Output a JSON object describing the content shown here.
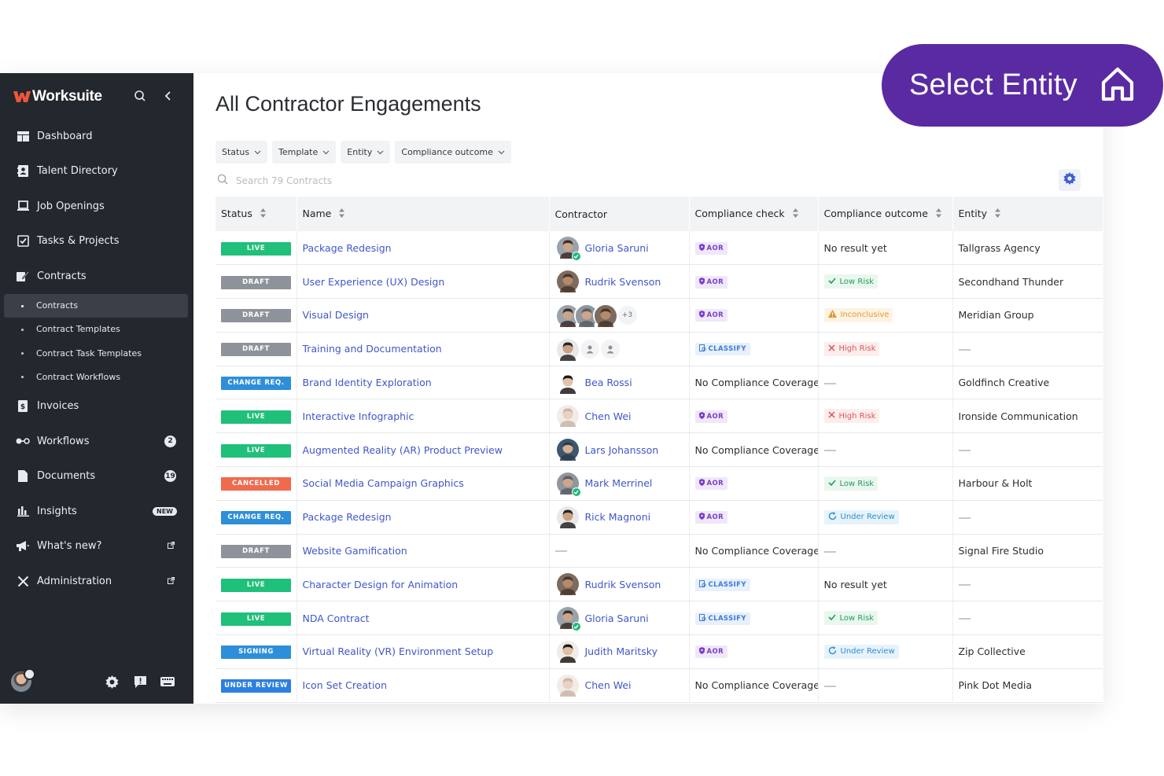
{
  "brand": {
    "name": "Worksuite"
  },
  "overlay": {
    "select_entity": "Select Entity"
  },
  "sidebar": {
    "items": [
      {
        "label": "Dashboard",
        "icon": "dashboard-icon"
      },
      {
        "label": "Talent Directory",
        "icon": "directory-icon"
      },
      {
        "label": "Job Openings",
        "icon": "briefcase-icon"
      },
      {
        "label": "Tasks & Projects",
        "icon": "tasks-icon"
      },
      {
        "label": "Contracts",
        "icon": "contract-icon"
      }
    ],
    "contract_sub": [
      "Contracts",
      "Contract Templates",
      "Contract Task Templates",
      "Contract Workflows"
    ],
    "items2": [
      {
        "label": "Invoices",
        "icon": "invoice-icon"
      },
      {
        "label": "Workflows",
        "icon": "workflow-icon",
        "badge": "2"
      },
      {
        "label": "Documents",
        "icon": "document-icon",
        "badge": "19"
      },
      {
        "label": "Insights",
        "icon": "insights-icon",
        "pill": "NEW"
      },
      {
        "label": "What's new?",
        "icon": "megaphone-icon"
      },
      {
        "label": "Administration",
        "icon": "tools-icon"
      }
    ]
  },
  "main": {
    "title": "All Contractor Engagements",
    "filters": [
      "Status",
      "Template",
      "Entity",
      "Compliance outcome"
    ],
    "search_placeholder": "Search 79 Contracts",
    "columns": [
      "Status",
      "Name",
      "Contractor",
      "Compliance check",
      "Compliance outcome",
      "Entity"
    ]
  },
  "colors": {
    "LIVE": "#1fc07a",
    "DRAFT": "#8e939b",
    "CHANGE REQ.": "#2d8fd9",
    "CANCELLED": "#f06a4d",
    "SIGNING": "#2d8fd9",
    "UNDER REVIEW": "#2d7fe0"
  },
  "rows": [
    {
      "status": "LIVE",
      "name": "Package Redesign",
      "contractor": "Gloria Saruni",
      "av": "gloria",
      "check": "AOR",
      "check_type": "aor",
      "outcome": "No result yet",
      "outcome_type": "text",
      "entity": "Tallgrass Agency"
    },
    {
      "status": "DRAFT",
      "name": "User Experience (UX) Design",
      "contractor": "Rudrik Svenson",
      "av": "rudrik",
      "check": "AOR",
      "check_type": "aor",
      "outcome": "Low Risk",
      "outcome_type": "low",
      "entity": "Secondhand Thunder"
    },
    {
      "status": "DRAFT",
      "name": "Visual Design",
      "contractor": "",
      "av": "group",
      "group_more": "+3",
      "check": "AOR",
      "check_type": "aor",
      "outcome": "Inconclusive",
      "outcome_type": "inc",
      "entity": "Meridian Group"
    },
    {
      "status": "DRAFT",
      "name": "Training and Documentation",
      "contractor": "",
      "av": "group2",
      "check": "CLASSIFY",
      "check_type": "classify",
      "outcome": "High Risk",
      "outcome_type": "high",
      "entity": ""
    },
    {
      "status": "CHANGE REQ.",
      "name": "Brand Identity Exploration",
      "contractor": "Bea Rossi",
      "av": "bea",
      "check": "No Compliance Coverage",
      "check_type": "text",
      "outcome": "",
      "outcome_type": "dash",
      "entity": "Goldfinch Creative"
    },
    {
      "status": "LIVE",
      "name": "Interactive Infographic",
      "contractor": "Chen Wei",
      "av": "chen",
      "check": "AOR",
      "check_type": "aor",
      "outcome": "High Risk",
      "outcome_type": "high",
      "entity": "Ironside Communication"
    },
    {
      "status": "LIVE",
      "name": "Augmented Reality (AR) Product Preview",
      "contractor": "Lars Johansson",
      "av": "lars",
      "check": "No Compliance Coverage",
      "check_type": "text",
      "outcome": "",
      "outcome_type": "dash",
      "entity": ""
    },
    {
      "status": "CANCELLED",
      "name": "Social Media Campaign Graphics",
      "contractor": "Mark Merrinel",
      "av": "mark",
      "check": "AOR",
      "check_type": "aor",
      "outcome": "Low Risk",
      "outcome_type": "low",
      "entity": "Harbour & Holt"
    },
    {
      "status": "CHANGE REQ.",
      "name": "Package Redesign",
      "contractor": "Rick Magnoni",
      "av": "rick",
      "check": "AOR",
      "check_type": "aor",
      "outcome": "Under Review",
      "outcome_type": "rev",
      "entity": ""
    },
    {
      "status": "DRAFT",
      "name": "Website Gamification",
      "contractor": "",
      "av": "none",
      "check": "No Compliance Coverage",
      "check_type": "text",
      "outcome": "",
      "outcome_type": "dash",
      "entity": "Signal Fire Studio"
    },
    {
      "status": "LIVE",
      "name": "Character Design for Animation",
      "contractor": "Rudrik Svenson",
      "av": "rudrik",
      "check": "CLASSIFY",
      "check_type": "classify",
      "outcome": "No result yet",
      "outcome_type": "text",
      "entity": ""
    },
    {
      "status": "LIVE",
      "name": "NDA Contract",
      "contractor": "Gloria Saruni",
      "av": "gloria",
      "check": "CLASSIFY",
      "check_type": "classify",
      "outcome": "Low Risk",
      "outcome_type": "low",
      "entity": ""
    },
    {
      "status": "SIGNING",
      "name": "Virtual Reality (VR) Environment Setup",
      "contractor": "Judith Maritsky",
      "av": "judith",
      "check": "AOR",
      "check_type": "aor",
      "outcome": "Under Review",
      "outcome_type": "rev",
      "entity": "Zip Collective"
    },
    {
      "status": "UNDER REVIEW",
      "name": "Icon Set Creation",
      "contractor": "Chen Wei",
      "av": "chen",
      "check": "No Compliance Coverage",
      "check_type": "text",
      "outcome": "",
      "outcome_type": "dash",
      "entity": "Pink Dot Media"
    }
  ]
}
